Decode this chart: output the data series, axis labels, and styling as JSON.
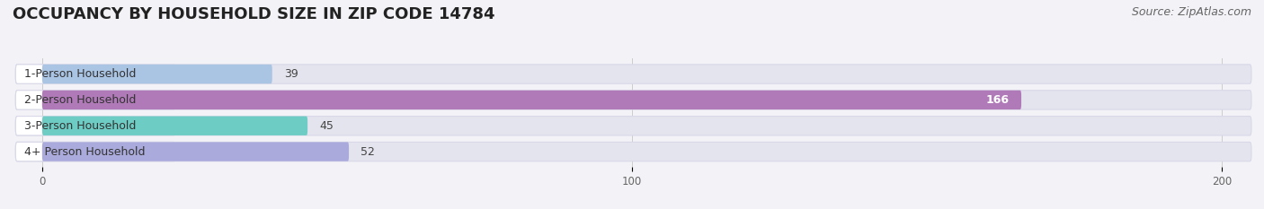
{
  "title": "OCCUPANCY BY HOUSEHOLD SIZE IN ZIP CODE 14784",
  "source": "Source: ZipAtlas.com",
  "categories": [
    "1-Person Household",
    "2-Person Household",
    "3-Person Household",
    "4+ Person Household"
  ],
  "values": [
    39,
    166,
    45,
    52
  ],
  "bar_colors": [
    "#aac4e4",
    "#b07ab8",
    "#6dcdc5",
    "#aaaadc"
  ],
  "xlim": [
    -5,
    205
  ],
  "xticks": [
    0,
    100,
    200
  ],
  "background_color": "#f2f2f7",
  "bar_background_color": "#e4e4ee",
  "row_bg_color": "#ffffff",
  "title_fontsize": 13,
  "source_fontsize": 9,
  "label_fontsize": 9,
  "value_fontsize": 9,
  "bar_height": 0.62,
  "figsize": [
    14.06,
    2.33
  ],
  "dpi": 100
}
